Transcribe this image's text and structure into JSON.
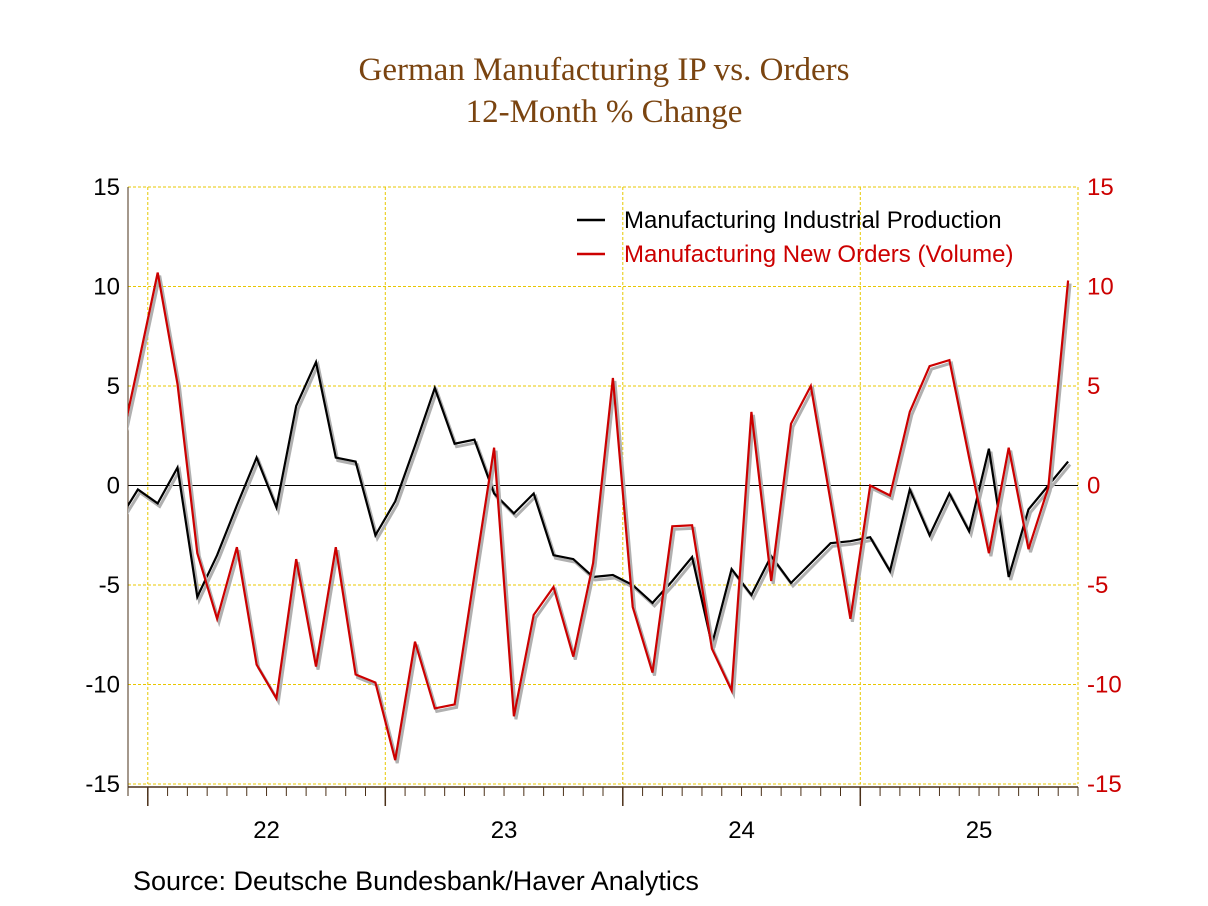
{
  "title": "German Manufacturing IP vs. Orders",
  "subtitle": "12-Month % Change",
  "source": "Source:  Deutsche Bundesbank/Haver Analytics",
  "chart_data": {
    "type": "line",
    "title": "German Manufacturing IP vs. Orders",
    "subtitle": "12-Month % Change",
    "x": [
      "2021-11",
      "2021-12",
      "2022-01",
      "2022-02",
      "2022-03",
      "2022-04",
      "2022-05",
      "2022-06",
      "2022-07",
      "2022-08",
      "2022-09",
      "2022-10",
      "2022-11",
      "2022-12",
      "2023-01",
      "2023-02",
      "2023-03",
      "2023-04",
      "2023-05",
      "2023-06",
      "2023-07",
      "2023-08",
      "2023-09",
      "2023-10",
      "2023-11",
      "2023-12",
      "2024-01",
      "2024-02",
      "2024-03",
      "2024-04",
      "2024-05",
      "2024-06",
      "2024-07",
      "2024-08",
      "2024-09",
      "2024-10",
      "2024-11",
      "2024-12",
      "2025-01",
      "2025-02",
      "2025-03",
      "2025-04",
      "2025-05",
      "2025-06",
      "2025-07",
      "2025-08",
      "2025-09",
      "2025-10",
      "2025-11"
    ],
    "x_tick_labels": [
      "22",
      "23",
      "24",
      "25"
    ],
    "x_tick_years": [
      2022,
      2023,
      2024,
      2025
    ],
    "y_left": {
      "range": [
        -15,
        15
      ],
      "ticks": [
        "15",
        "10",
        "5",
        "0",
        "-5",
        "-10",
        "-15"
      ],
      "color": "#000000"
    },
    "y_right": {
      "range": [
        -15,
        15
      ],
      "ticks": [
        "15",
        "10",
        "5",
        "0",
        "-5",
        "-10",
        "-15"
      ],
      "color": "#cc0000"
    },
    "grid": true,
    "grid_color": "#e8c800",
    "legend_position": "top-right",
    "series": [
      {
        "name": "Manufacturing Industrial Production",
        "color": "#000000",
        "axis": "left",
        "values": [
          -1.8,
          -0.2,
          -0.9,
          0.9,
          -5.6,
          -3.5,
          -1.0,
          1.4,
          -1.1,
          4.0,
          6.2,
          1.4,
          1.2,
          -2.5,
          -0.8,
          2.0,
          4.9,
          2.1,
          2.3,
          -0.4,
          -1.4,
          -0.4,
          -3.5,
          -3.7,
          -4.6,
          -4.5,
          -5.0,
          -5.9,
          -4.8,
          -3.6,
          -8.0,
          -4.2,
          -5.5,
          -3.55,
          -4.9,
          -3.9,
          -2.9,
          -2.8,
          -2.6,
          -4.3,
          -0.2,
          -2.5,
          -0.4,
          -2.3,
          1.85,
          -4.6,
          -1.2,
          0.0,
          1.2
        ]
      },
      {
        "name": "Manufacturing New Orders (Volume)",
        "color": "#cc0000",
        "axis": "right",
        "values": [
          1.4,
          6.0,
          10.7,
          5.1,
          -3.4,
          -6.7,
          -3.1,
          -9.0,
          -10.7,
          -3.7,
          -9.1,
          -3.1,
          -9.5,
          -9.9,
          -13.8,
          -7.85,
          -11.2,
          -11.0,
          -4.5,
          1.9,
          -11.6,
          -6.5,
          -5.1,
          -8.6,
          -3.9,
          5.4,
          -6.1,
          -9.4,
          -2.05,
          -2.0,
          -8.2,
          -10.3,
          3.7,
          -4.8,
          3.1,
          5.0,
          -0.8,
          -6.7,
          0.0,
          -0.5,
          3.7,
          6.0,
          6.3,
          1.4,
          -3.4,
          1.9,
          -3.2,
          -0.1,
          10.3
        ]
      }
    ]
  }
}
